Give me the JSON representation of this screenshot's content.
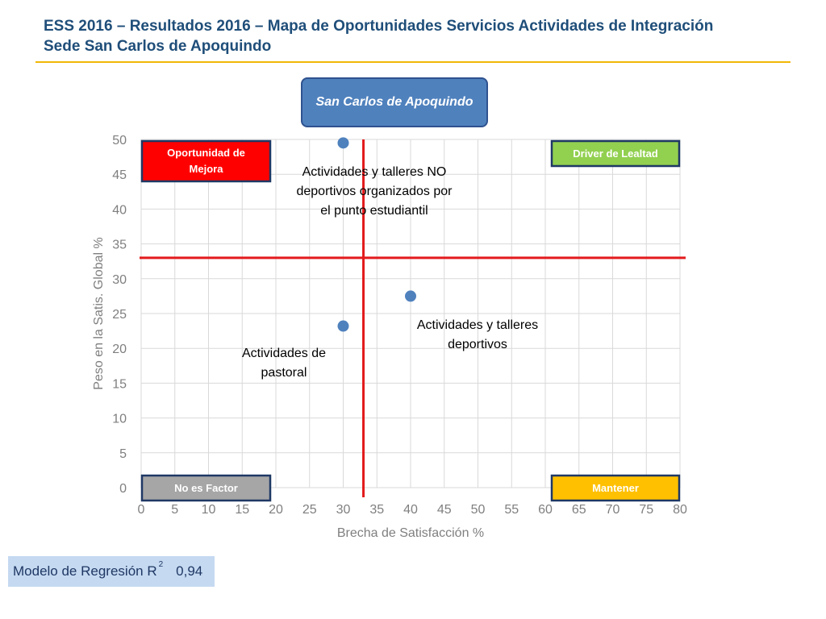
{
  "header": {
    "title_line1": "ESS 2016 – Resultados 2016 – Mapa de Oportunidades Servicios Actividades de Integración",
    "title_line2": "Sede San Carlos de Apoquindo",
    "accent_color": "#f2b705"
  },
  "site_label": "San Carlos de Apoquindo",
  "regression": {
    "label": "Modelo de Regresión R",
    "superscript": "2",
    "value": "0,94"
  },
  "quadrants": {
    "top_left": {
      "label": "Oportunidad de Mejora",
      "color": "#ff0000"
    },
    "top_right": {
      "label": "Driver de Lealtad",
      "color": "#92d050"
    },
    "bottom_left": {
      "label": "No es Factor",
      "color": "#a6a6a6"
    },
    "bottom_right": {
      "label": "Mantener",
      "color": "#ffc000"
    }
  },
  "chart_data": {
    "type": "scatter",
    "xlabel": "Brecha de Satisfacción %",
    "ylabel": "Peso en la Satis. Global %",
    "xlim": [
      0,
      80
    ],
    "ylim": [
      0,
      50
    ],
    "xticks": [
      0,
      5,
      10,
      15,
      20,
      25,
      30,
      35,
      40,
      45,
      50,
      55,
      60,
      65,
      70,
      75,
      80
    ],
    "yticks": [
      0,
      5,
      10,
      15,
      20,
      25,
      30,
      35,
      40,
      45,
      50
    ],
    "grid": true,
    "reference_lines": {
      "x": 33,
      "y": 33,
      "color": "#e31a1c"
    },
    "point_color": "#4f81bd",
    "points": [
      {
        "x": 30,
        "y": 49.5,
        "label": [
          "Actividades y talleres NO",
          "deportivos organizados por",
          "el punto estudiantil"
        ]
      },
      {
        "x": 40,
        "y": 27.5,
        "label": [
          "Actividades y talleres",
          "deportivos"
        ]
      },
      {
        "x": 30,
        "y": 23.2,
        "label": [
          "Actividades de",
          "pastoral"
        ]
      }
    ]
  }
}
